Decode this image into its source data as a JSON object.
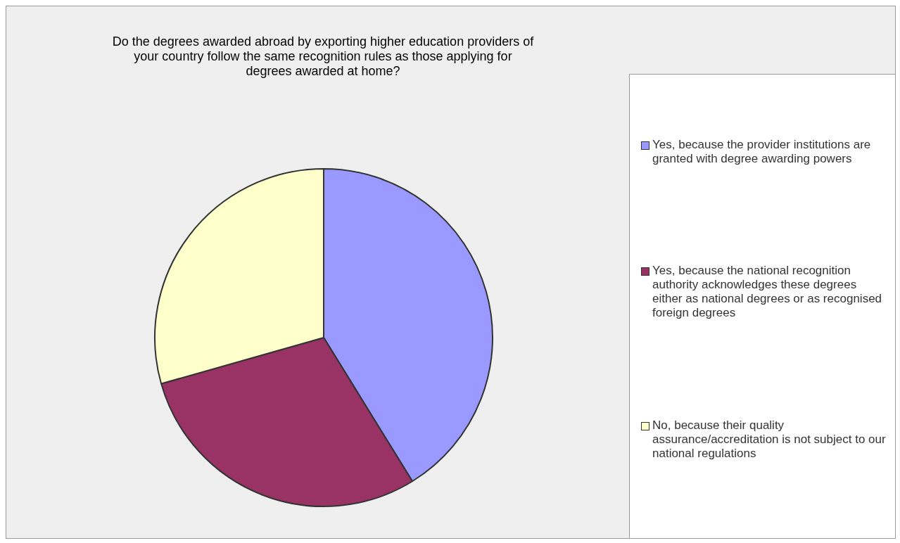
{
  "chart_data": {
    "type": "pie",
    "title": "Do the degrees awarded abroad by exporting higher education providers of your country follow the same recognition rules as those applying for degrees awarded at home?",
    "categories": [
      "Yes, because the provider institutions are granted with degree awarding powers",
      "Yes, because the national recognition authority acknowledges these degrees either as national degrees or as recognised foreign degrees",
      "No, because their quality assurance/accreditation is not subject to our national regulations"
    ],
    "values": [
      41.2,
      29.4,
      29.4
    ],
    "colors": [
      "#9999ff",
      "#993366",
      "#ffffcc"
    ],
    "legend": "right"
  }
}
